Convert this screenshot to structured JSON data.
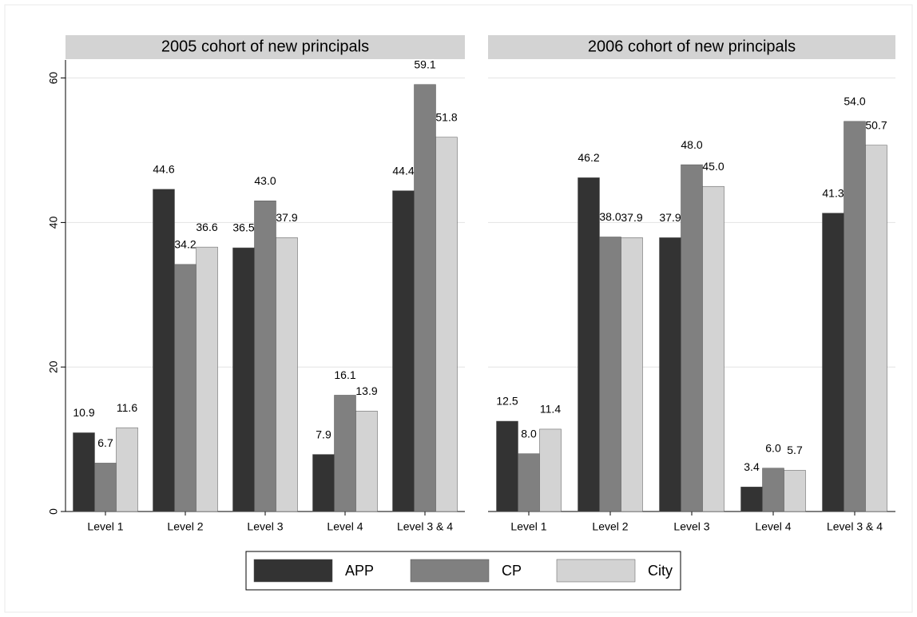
{
  "chart_data": [
    {
      "type": "bar",
      "title": "2005 cohort of new principals",
      "categories": [
        "Level 1",
        "Level 2",
        "Level 3",
        "Level 4",
        "Level 3 & 4"
      ],
      "series": [
        {
          "name": "APP",
          "color": "#333333",
          "values": [
            10.9,
            44.6,
            36.5,
            7.9,
            44.4
          ],
          "value_labels": [
            "10.9",
            "44.6",
            "36.5",
            "7.9",
            "44.4"
          ]
        },
        {
          "name": "CP",
          "color": "#808080",
          "values": [
            6.7,
            34.2,
            43.0,
            16.1,
            59.1
          ],
          "value_labels": [
            "6.7",
            "34.2",
            "43.0",
            "16.1",
            "59.1"
          ]
        },
        {
          "name": "City",
          "color": "#d3d3d3",
          "values": [
            11.6,
            36.6,
            37.9,
            13.9,
            51.8
          ],
          "value_labels": [
            "11.6",
            "36.6",
            "37.9",
            "13.9",
            "51.8"
          ]
        }
      ],
      "ylim": [
        0,
        62.5
      ],
      "yticks": [
        0,
        20,
        40,
        60
      ],
      "grid": true
    },
    {
      "type": "bar",
      "title": "2006 cohort of new principals",
      "categories": [
        "Level 1",
        "Level 2",
        "Level 3",
        "Level 4",
        "Level 3 & 4"
      ],
      "series": [
        {
          "color": "#333333",
          "values": [
            12.5,
            46.2,
            37.9,
            3.4,
            41.3
          ],
          "value_labels": [
            "12.5",
            "46.2",
            "37.9",
            "3.4",
            "41.3"
          ]
        },
        {
          "color": "#808080",
          "values": [
            8.0,
            38.0,
            48.0,
            6.0,
            54.0
          ],
          "value_labels": [
            "8.0",
            "38.0",
            "48.0",
            "6.0",
            "54.0"
          ]
        },
        {
          "color": "#d3d3d3",
          "values": [
            11.4,
            37.9,
            45.0,
            5.7,
            50.7
          ],
          "value_labels": [
            "11.4",
            "37.9",
            "45.0",
            "5.7",
            "50.7"
          ]
        }
      ],
      "ylim": [
        0,
        62.5
      ],
      "yticks": [
        0,
        20,
        40,
        60
      ],
      "grid": true
    }
  ]
}
